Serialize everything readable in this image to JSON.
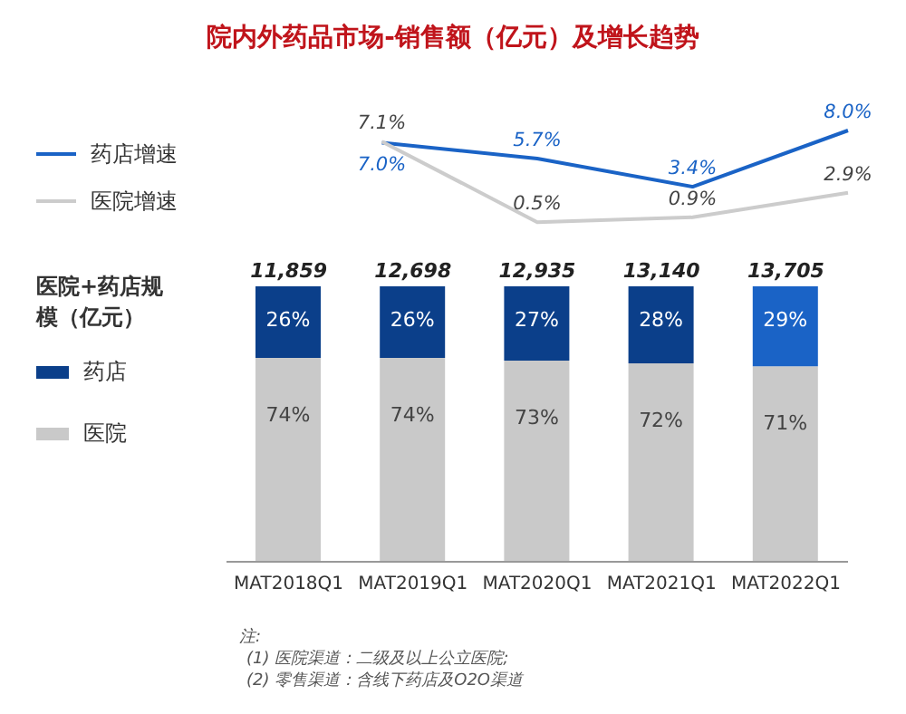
{
  "chart_data": [
    {
      "type": "line",
      "categories": [
        null,
        null,
        null,
        null,
        null
      ],
      "tick_labels": false,
      "legend": "left",
      "title": "院内外药品市场-销售额（亿元）及增长趋势",
      "series": [
        {
          "name": "药店增速",
          "color": "#1a63c6",
          "values": [
            null,
            7.0,
            5.7,
            3.4,
            8.0
          ],
          "value_labels": [
            null,
            "7.0%",
            "5.7%",
            "3.4%",
            "8.0%"
          ]
        },
        {
          "name": "医院增速",
          "color": "#cccccc",
          "values": [
            null,
            7.1,
            0.5,
            0.9,
            2.9
          ],
          "value_labels": [
            null,
            "7.1%",
            "0.5%",
            "0.9%",
            "2.9%"
          ]
        }
      ]
    },
    {
      "type": "bar",
      "categories": [
        "MAT2018Q1",
        "MAT2019Q1",
        "MAT2020Q1",
        "MAT2021Q1",
        "MAT2022Q1"
      ],
      "stacked": true,
      "tick_labels": "x",
      "legend": "left",
      "legend_title": "医院+药店规模（亿元）",
      "series": [
        {
          "name": "医院",
          "color": "#c9c9c9",
          "values": [
            74,
            74,
            73,
            72,
            71
          ],
          "value_labels": [
            "74%",
            "74%",
            "73%",
            "72%",
            "71%"
          ]
        },
        {
          "name": "药店",
          "color": "#0b3f8a",
          "colors": [
            "#0b3f8a",
            "#0b3f8a",
            "#0b3f8a",
            "#0b3f8a",
            "#1a63c6"
          ],
          "values": [
            26,
            26,
            27,
            28,
            29
          ],
          "value_labels": [
            "26%",
            "26%",
            "27%",
            "28%",
            "29%"
          ]
        }
      ],
      "annotations": [
        {
          "text": "11,859",
          "x": "MAT2018Q1",
          "y": 100
        },
        {
          "text": "12,698",
          "x": "MAT2019Q1",
          "y": 100
        },
        {
          "text": "12,935",
          "x": "MAT2020Q1",
          "y": 100
        },
        {
          "text": "13,140",
          "x": "MAT2021Q1",
          "y": 100
        },
        {
          "text": "13,705",
          "x": "MAT2022Q1",
          "y": 100
        },
        "注:",
        "(1) 医院渠道：二级及以上公立医院;",
        "(2) 零售渠道：含线下药店及O2O渠道"
      ]
    }
  ]
}
